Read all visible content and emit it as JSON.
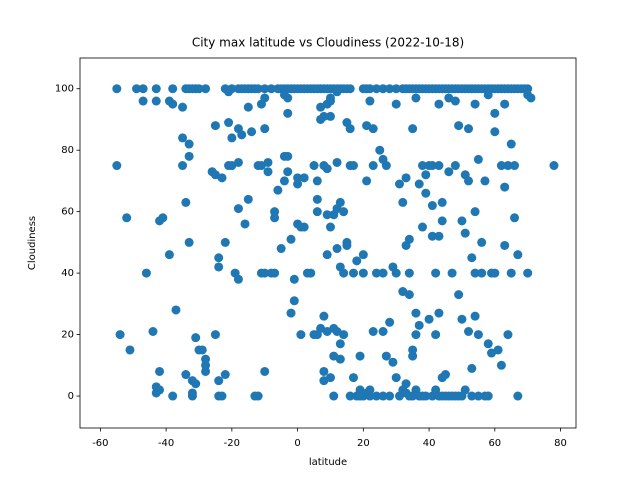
{
  "chart_data": {
    "type": "scatter",
    "title": "City max latitude vs Cloudiness (2022-10-18)",
    "x_label": "latitude",
    "y_label": "Cloudiness",
    "color": "#1f77b4",
    "xlim": [
      -66.2,
      84.7
    ],
    "ylim": [
      -10.4,
      110
    ],
    "xticks": [
      -60,
      -40,
      -20,
      0,
      20,
      40,
      60,
      80
    ],
    "yticks": [
      0,
      20,
      40,
      60,
      80,
      100
    ],
    "x": [
      -55,
      -49,
      -47,
      -43,
      -38,
      -34,
      -33,
      -32,
      -31,
      -30,
      -28,
      -22,
      -20,
      -18,
      -17,
      -16,
      -15,
      -14,
      -13,
      -12,
      -10,
      -8,
      -6,
      -5,
      -4,
      -3,
      -2,
      -1,
      0,
      1,
      2,
      3,
      4,
      5,
      6,
      7,
      8,
      9,
      10,
      11,
      12,
      13,
      14,
      15,
      16,
      20,
      21,
      22,
      24,
      26,
      28,
      30,
      32,
      33,
      34,
      35,
      36,
      37,
      38,
      39,
      40,
      41,
      42,
      43,
      44,
      45,
      46,
      47,
      48,
      49,
      50,
      51,
      52,
      53,
      54,
      55,
      56,
      57,
      58,
      59,
      60,
      61,
      62,
      63,
      64,
      65,
      66,
      67,
      68,
      69,
      70,
      -47,
      -43,
      -38,
      -39,
      -21,
      -15,
      -11,
      -10,
      -4,
      -3,
      9,
      7,
      10,
      12,
      22,
      30,
      36,
      43,
      48,
      54,
      58,
      63,
      70,
      71,
      46,
      10,
      -55,
      -52,
      -54,
      -51,
      -46,
      -44,
      -43,
      -43,
      -42,
      -42,
      -42,
      -41,
      -39,
      -38,
      -37,
      -35,
      -35,
      -35,
      -34,
      -34,
      -33,
      -33,
      -33,
      -32,
      -32,
      -32,
      -31,
      -31,
      -30,
      -29,
      -28,
      -28,
      -28,
      -26,
      -25,
      -25,
      -25,
      -24,
      -24,
      -23,
      -24,
      -24,
      -23,
      -22,
      -22,
      -21,
      -21,
      -20,
      -20,
      -19,
      -18,
      -18,
      -18,
      -18,
      -17,
      -16,
      -15,
      -14,
      -13,
      -12,
      -12,
      -11,
      -11,
      -10,
      -10,
      -10,
      -9,
      -9,
      -8,
      -7,
      -7,
      -7,
      -6,
      -5,
      -4,
      -4,
      -3,
      -3,
      -3,
      -2,
      -2,
      -1,
      -1,
      0,
      0,
      0,
      1,
      1,
      2,
      3,
      4,
      5,
      5,
      6,
      6,
      6,
      6,
      7,
      7,
      8,
      8,
      8,
      8,
      9,
      9,
      9,
      9,
      10,
      10,
      10,
      11,
      11,
      11,
      11,
      12,
      12,
      12,
      12,
      13,
      13,
      13,
      13,
      14,
      14,
      14,
      15,
      15,
      15,
      16,
      16,
      16,
      17,
      17,
      18,
      18,
      19,
      19,
      20,
      20,
      20,
      21,
      21,
      22,
      22,
      23,
      23,
      23,
      24,
      25,
      26,
      26,
      26,
      27,
      27,
      28,
      28,
      29,
      29,
      30,
      30,
      31,
      31,
      32,
      32,
      33,
      33,
      33,
      34,
      34,
      34,
      35,
      35,
      35,
      35,
      36,
      36,
      37,
      37,
      38,
      38,
      39,
      39,
      40,
      40,
      41,
      41,
      41,
      42,
      42,
      42,
      43,
      43,
      43,
      44,
      44,
      44,
      45,
      45,
      46,
      46,
      47,
      48,
      49,
      49,
      50,
      50,
      51,
      51,
      51,
      52,
      52,
      52,
      53,
      53,
      54,
      54,
      54,
      55,
      55,
      56,
      56,
      57,
      57,
      58,
      59,
      59,
      60,
      60,
      60,
      61,
      62,
      62,
      63,
      63,
      64,
      64,
      65,
      65,
      66,
      66,
      67,
      67,
      70,
      78,
      39,
      44,
      47,
      49,
      53,
      55,
      26,
      32,
      36,
      38,
      41,
      24,
      19,
      21,
      33,
      17,
      2,
      8,
      34,
      37,
      43,
      48,
      50,
      58
    ],
    "values": [
      100,
      100,
      100,
      100,
      100,
      100,
      100,
      100,
      100,
      100,
      100,
      100,
      100,
      100,
      100,
      100,
      100,
      100,
      100,
      100,
      100,
      100,
      100,
      100,
      100,
      100,
      100,
      100,
      100,
      100,
      100,
      100,
      100,
      100,
      100,
      100,
      100,
      100,
      100,
      100,
      100,
      100,
      100,
      100,
      100,
      100,
      100,
      100,
      100,
      100,
      100,
      100,
      100,
      100,
      100,
      100,
      100,
      100,
      100,
      100,
      100,
      100,
      100,
      100,
      100,
      100,
      100,
      100,
      100,
      100,
      100,
      100,
      100,
      100,
      100,
      100,
      100,
      100,
      100,
      100,
      100,
      100,
      100,
      100,
      100,
      100,
      100,
      100,
      100,
      100,
      100,
      96,
      96,
      95,
      96,
      99,
      94,
      95,
      97,
      98,
      97,
      95,
      94,
      97,
      99,
      96,
      95,
      97,
      95,
      96,
      95,
      98,
      95,
      98,
      97,
      97,
      96,
      75,
      58,
      20,
      15,
      40,
      21,
      3,
      1,
      8,
      2,
      57,
      58,
      46,
      0,
      28,
      94,
      84,
      75,
      63,
      7,
      78,
      82,
      50,
      5,
      0,
      1,
      19,
      4,
      15,
      15,
      8,
      12,
      10,
      73,
      88,
      20,
      72,
      45,
      42,
      71,
      5,
      0,
      0,
      50,
      7,
      75,
      89,
      84,
      75,
      40,
      61,
      38,
      76,
      87,
      85,
      56,
      64,
      86,
      0,
      0,
      75,
      75,
      40,
      40,
      87,
      8,
      73,
      76,
      40,
      40,
      58,
      60,
      67,
      48,
      78,
      70,
      78,
      73,
      92,
      27,
      51,
      38,
      31,
      71,
      69,
      56,
      20,
      55,
      71,
      40,
      40,
      20,
      75,
      20,
      60,
      64,
      70,
      90,
      22,
      75,
      26,
      8,
      5,
      74,
      59,
      46,
      21,
      6,
      55,
      91,
      59,
      22,
      13,
      0,
      76,
      61,
      48,
      21,
      63,
      42,
      17,
      12,
      60,
      40,
      20,
      49,
      50,
      89,
      87,
      75,
      0,
      40,
      6,
      44,
      0,
      13,
      2,
      46,
      0,
      40,
      70,
      88,
      2,
      0,
      87,
      75,
      21,
      0,
      80,
      77,
      21,
      40,
      75,
      13,
      0,
      24,
      11,
      42,
      40,
      6,
      69,
      0,
      63,
      34,
      71,
      49,
      1,
      33,
      51,
      40,
      87,
      13,
      15,
      0,
      27,
      20,
      69,
      23,
      55,
      75,
      66,
      72,
      25,
      75,
      62,
      52,
      75,
      2,
      20,
      40,
      52,
      75,
      27,
      57,
      63,
      6,
      7,
      0,
      73,
      0,
      40,
      75,
      88,
      33,
      57,
      25,
      53,
      72,
      2,
      70,
      21,
      87,
      45,
      9,
      40,
      60,
      26,
      77,
      20,
      50,
      40,
      0,
      70,
      17,
      40,
      14,
      86,
      92,
      40,
      15,
      75,
      10,
      68,
      49,
      20,
      75,
      40,
      82,
      75,
      58,
      46,
      0,
      40,
      75,
      0,
      0,
      0,
      0,
      0,
      0,
      0,
      2,
      2,
      0,
      0,
      40,
      0,
      1,
      4,
      75,
      55,
      91,
      0,
      0,
      0,
      0,
      0,
      0
    ]
  }
}
